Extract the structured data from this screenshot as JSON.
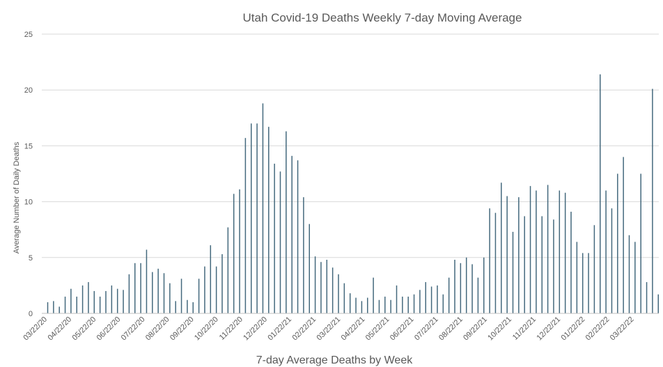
{
  "chart_data": {
    "type": "bar",
    "title": "Utah Covid-19 Deaths Weekly 7-day Moving Average",
    "xlabel": "7-day Average Deaths by Week",
    "ylabel": "Average Number of Daily Deaths",
    "ylim": [
      0,
      25
    ],
    "yticks": [
      "0",
      "5",
      "10",
      "15",
      "20",
      "25"
    ],
    "grid": true,
    "colors": {
      "bar": "#44697d",
      "grid": "#d9d9d9",
      "text": "#595959"
    },
    "xtick_labels": [
      "03/22/20",
      "04/22/20",
      "05/22/20",
      "06/22/20",
      "07/22/20",
      "08/22/20",
      "09/22/20",
      "10/22/20",
      "11/22/20",
      "12/22/20",
      "01/22/21",
      "02/22/21",
      "03/22/21",
      "04/22/21",
      "05/22/21",
      "06/22/21",
      "07/22/21",
      "08/22/21",
      "09/22/21",
      "10/22/21",
      "11/22/21",
      "12/22/21",
      "01/22/22",
      "02/22/22",
      "03/22/22"
    ],
    "values": [
      1.0,
      1.1,
      0.6,
      1.5,
      2.2,
      1.5,
      2.5,
      2.8,
      2.0,
      1.5,
      2.0,
      2.5,
      2.2,
      2.1,
      3.5,
      4.5,
      4.5,
      5.7,
      3.7,
      4.0,
      3.6,
      2.7,
      1.1,
      3.1,
      1.2,
      1.0,
      3.1,
      4.2,
      6.1,
      4.2,
      5.3,
      7.7,
      10.7,
      11.1,
      15.7,
      17.0,
      17.0,
      18.8,
      16.7,
      13.4,
      12.7,
      16.3,
      14.1,
      13.7,
      10.4,
      8.0,
      5.1,
      4.6,
      4.8,
      4.1,
      3.5,
      2.7,
      1.8,
      1.4,
      1.1,
      1.4,
      3.2,
      1.2,
      1.5,
      1.2,
      2.5,
      1.5,
      1.5,
      1.7,
      2.1,
      2.8,
      2.4,
      2.5,
      1.7,
      3.2,
      4.8,
      4.5,
      5.0,
      4.4,
      3.2,
      5.0,
      9.4,
      9.0,
      11.7,
      10.5,
      7.3,
      10.4,
      8.7,
      11.4,
      11.0,
      8.7,
      11.5,
      8.4,
      11.0,
      10.8,
      9.1,
      6.4,
      5.4,
      5.4,
      7.9,
      21.4,
      11.0,
      9.4,
      12.5,
      14.0,
      7.0,
      6.4,
      12.5,
      2.8,
      20.1,
      1.7
    ]
  }
}
